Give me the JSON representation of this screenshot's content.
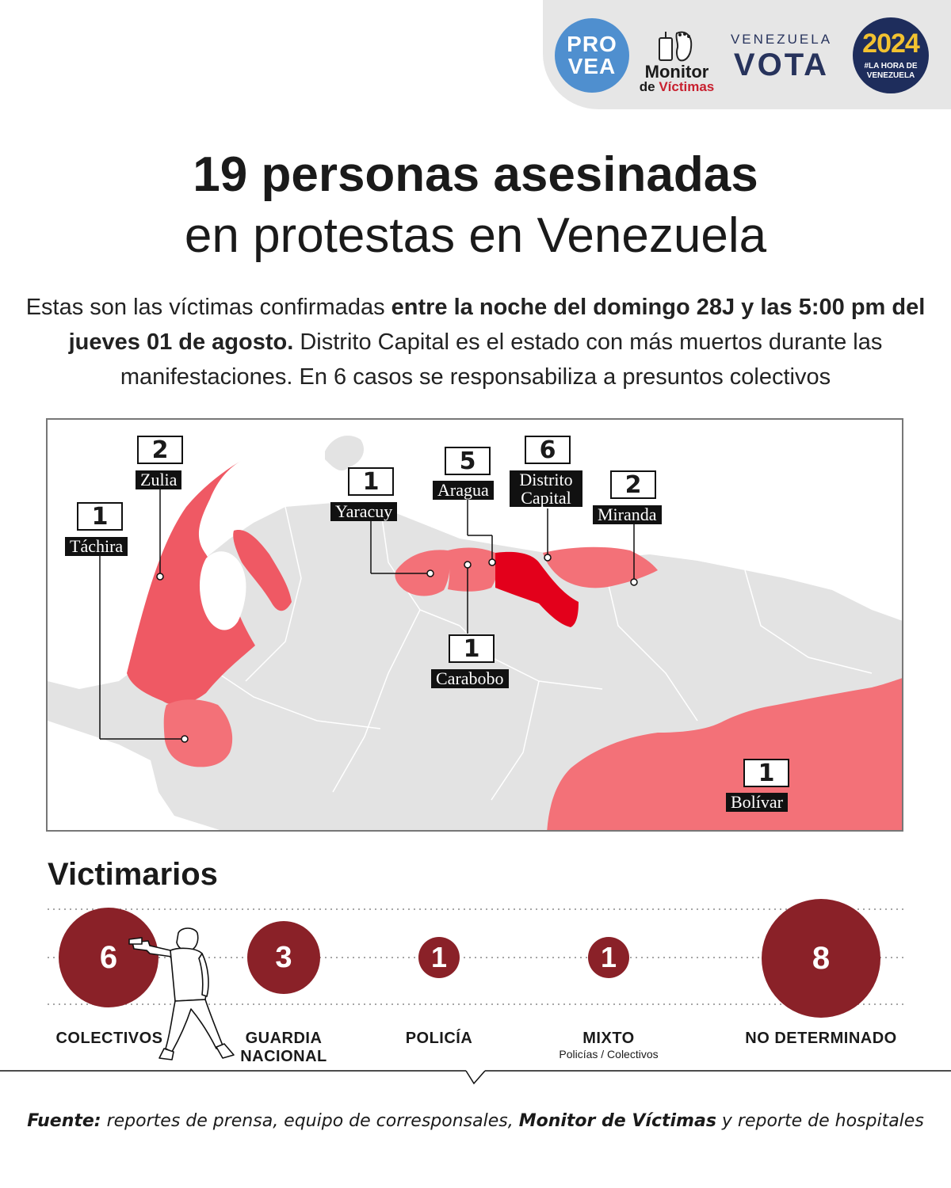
{
  "logos": {
    "provea_line1": "PRO",
    "provea_line2": "VEA",
    "monitor_line1": "Monitor",
    "monitor_de": "de ",
    "monitor_victimas": "Víctimas",
    "vota_line1": "VENEZUELA",
    "vota_line2": "VOTA",
    "hora_year": "2024",
    "hora_line1": "#LA HORA DE",
    "hora_line2": "VENEZUELA"
  },
  "title": {
    "line1": "19 personas asesinadas",
    "line2": "en protestas en Venezuela"
  },
  "intro": {
    "part1": "Estas son las víctimas confirmadas ",
    "bold": "entre la noche del domingo 28J y las 5:00 pm del jueves 01 de agosto.",
    "part2": " Distrito Capital es el estado con más muertos durante las manifestaciones. En 6 casos se responsabiliza a presuntos colectivos"
  },
  "map": {
    "states": [
      {
        "name": "Zulia",
        "count": "2"
      },
      {
        "name": "Táchira",
        "count": "1"
      },
      {
        "name": "Yaracuy",
        "count": "1"
      },
      {
        "name": "Aragua",
        "count": "5"
      },
      {
        "name": "Distrito",
        "name2": "Capital",
        "count": "6"
      },
      {
        "name": "Miranda",
        "count": "2"
      },
      {
        "name": "Carabobo",
        "count": "1"
      },
      {
        "name": "Bolívar",
        "count": "1"
      }
    ],
    "colors": {
      "land": "#e3e3e3",
      "low": "#f37178",
      "mid": "#ef5964",
      "high": "#e3001b"
    }
  },
  "victimarios": {
    "title": "Victimarios",
    "items": [
      {
        "value": "6",
        "label": "COLECTIVOS"
      },
      {
        "value": "3",
        "label": "GUARDIA",
        "label2": "NACIONAL"
      },
      {
        "value": "1",
        "label": "POLICÍA"
      },
      {
        "value": "1",
        "label": "MIXTO",
        "sub": "Policías / Colectivos"
      },
      {
        "value": "8",
        "label": "NO DETERMINADO"
      }
    ],
    "color": "#8a2128"
  },
  "source": {
    "prefix": "Fuente:",
    "text1": " reportes de prensa, equipo de corresponsales, ",
    "bold": "Monitor de Víctimas",
    "text2": " y reporte de hospitales"
  }
}
